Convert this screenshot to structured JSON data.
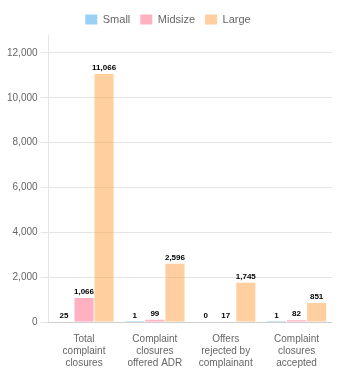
{
  "chart_data": {
    "type": "bar",
    "categories": [
      "Total\ncomplaint\nclosures",
      "Complaint\nclosures\noffered ADR",
      "Offers\nrejected by\ncomplainant",
      "Complaint\nclosures\naccepted"
    ],
    "series": [
      {
        "name": "Small",
        "values": [
          25,
          1,
          0,
          1
        ],
        "value_labels": [
          "25",
          "1",
          "0",
          "1"
        ]
      },
      {
        "name": "Midsize",
        "values": [
          1066,
          99,
          17,
          82
        ],
        "value_labels": [
          "1,066",
          "99",
          "17",
          "82"
        ]
      },
      {
        "name": "Large",
        "values": [
          11066,
          2596,
          1745,
          851
        ],
        "value_labels": [
          "11,066",
          "2,596",
          "1,745",
          "851"
        ]
      }
    ],
    "ylim": [
      0,
      12800
    ],
    "yticks": [
      0,
      {
        "value": 2000,
        "label": "2,000"
      },
      {
        "value": 4000,
        "label": "4,000"
      },
      {
        "value": 6000,
        "label": "6,000"
      },
      {
        "value": 8000,
        "label": "8,000"
      },
      {
        "value": 10000,
        "label": "10,000"
      },
      {
        "value": 12000,
        "label": "12,000"
      }
    ],
    "grid": true,
    "legend": "top",
    "data_labels": true
  }
}
